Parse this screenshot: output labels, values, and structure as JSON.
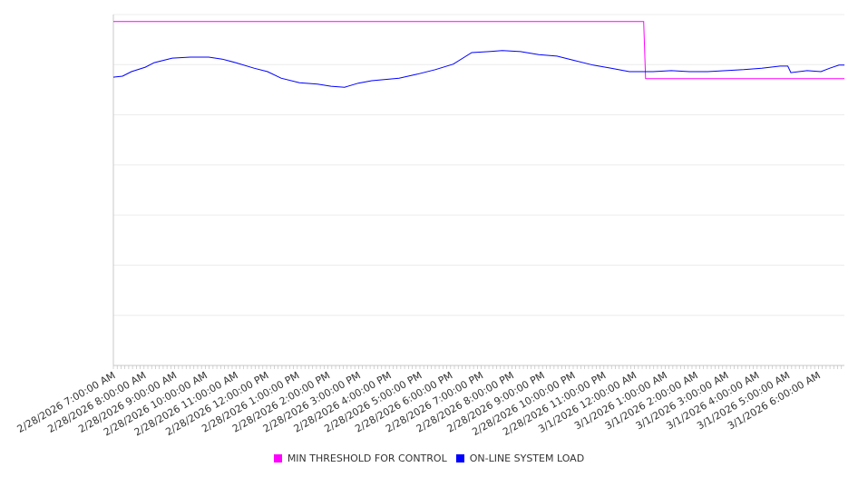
{
  "chart_data": {
    "type": "line",
    "title": "",
    "xlabel": "",
    "ylabel": "",
    "x_unit": "hours since 2/28/2026 7:00:00 AM",
    "xlim": [
      0,
      23.85
    ],
    "ylim": [
      0,
      7
    ],
    "grid": true,
    "legend_position": "bottom-center",
    "x_tick_labels": [
      "2/28/2026 7:00:00 AM",
      "2/28/2026 8:00:00 AM",
      "2/28/2026 9:00:00 AM",
      "2/28/2026 10:00:00 AM",
      "2/28/2026 11:00:00 AM",
      "2/28/2026 12:00:00 PM",
      "2/28/2026 1:00:00 PM",
      "2/28/2026 2:00:00 PM",
      "2/28/2026 3:00:00 PM",
      "2/28/2026 4:00:00 PM",
      "2/28/2026 5:00:00 PM",
      "2/28/2026 6:00:00 PM",
      "2/28/2026 7:00:00 PM",
      "2/28/2026 8:00:00 PM",
      "2/28/2026 9:00:00 PM",
      "2/28/2026 10:00:00 PM",
      "2/28/2026 11:00:00 PM",
      "3/1/2026 12:00:00 AM",
      "3/1/2026 1:00:00 AM",
      "3/1/2026 2:00:00 AM",
      "3/1/2026 3:00:00 AM",
      "3/1/2026 4:00:00 AM",
      "3/1/2026 5:00:00 AM",
      "3/1/2026 6:00:00 AM"
    ],
    "series": [
      {
        "name": "MIN THRESHOLD FOR CONTROL",
        "color": "#ff00ff",
        "x": [
          0,
          17.3,
          17.36,
          23.85
        ],
        "y": [
          6.86,
          6.86,
          5.72,
          5.72
        ]
      },
      {
        "name": "ON-LINE SYSTEM LOAD",
        "color": "#0000ff",
        "x": [
          0,
          0.3,
          0.59,
          1.04,
          1.33,
          1.92,
          2.51,
          3.11,
          3.55,
          3.99,
          4.59,
          5.03,
          5.47,
          6.07,
          6.66,
          7.1,
          7.54,
          7.99,
          8.43,
          9.32,
          9.91,
          10.5,
          11.09,
          11.69,
          12.25,
          12.69,
          13.28,
          13.88,
          14.47,
          15.06,
          15.65,
          16.24,
          16.83,
          17.6,
          18.2,
          18.79,
          19.38,
          19.97,
          20.56,
          21.15,
          21.75,
          22.0,
          22.1,
          22.63,
          23.08,
          23.37,
          23.67,
          23.85
        ],
        "y": [
          5.75,
          5.77,
          5.86,
          5.95,
          6.04,
          6.13,
          6.15,
          6.15,
          6.11,
          6.04,
          5.93,
          5.86,
          5.73,
          5.64,
          5.61,
          5.57,
          5.55,
          5.63,
          5.68,
          5.73,
          5.81,
          5.9,
          6.01,
          6.24,
          6.26,
          6.28,
          6.26,
          6.2,
          6.17,
          6.08,
          5.99,
          5.93,
          5.86,
          5.86,
          5.88,
          5.86,
          5.86,
          5.88,
          5.9,
          5.93,
          5.97,
          5.97,
          5.84,
          5.88,
          5.86,
          5.93,
          5.99,
          5.99
        ]
      }
    ]
  }
}
